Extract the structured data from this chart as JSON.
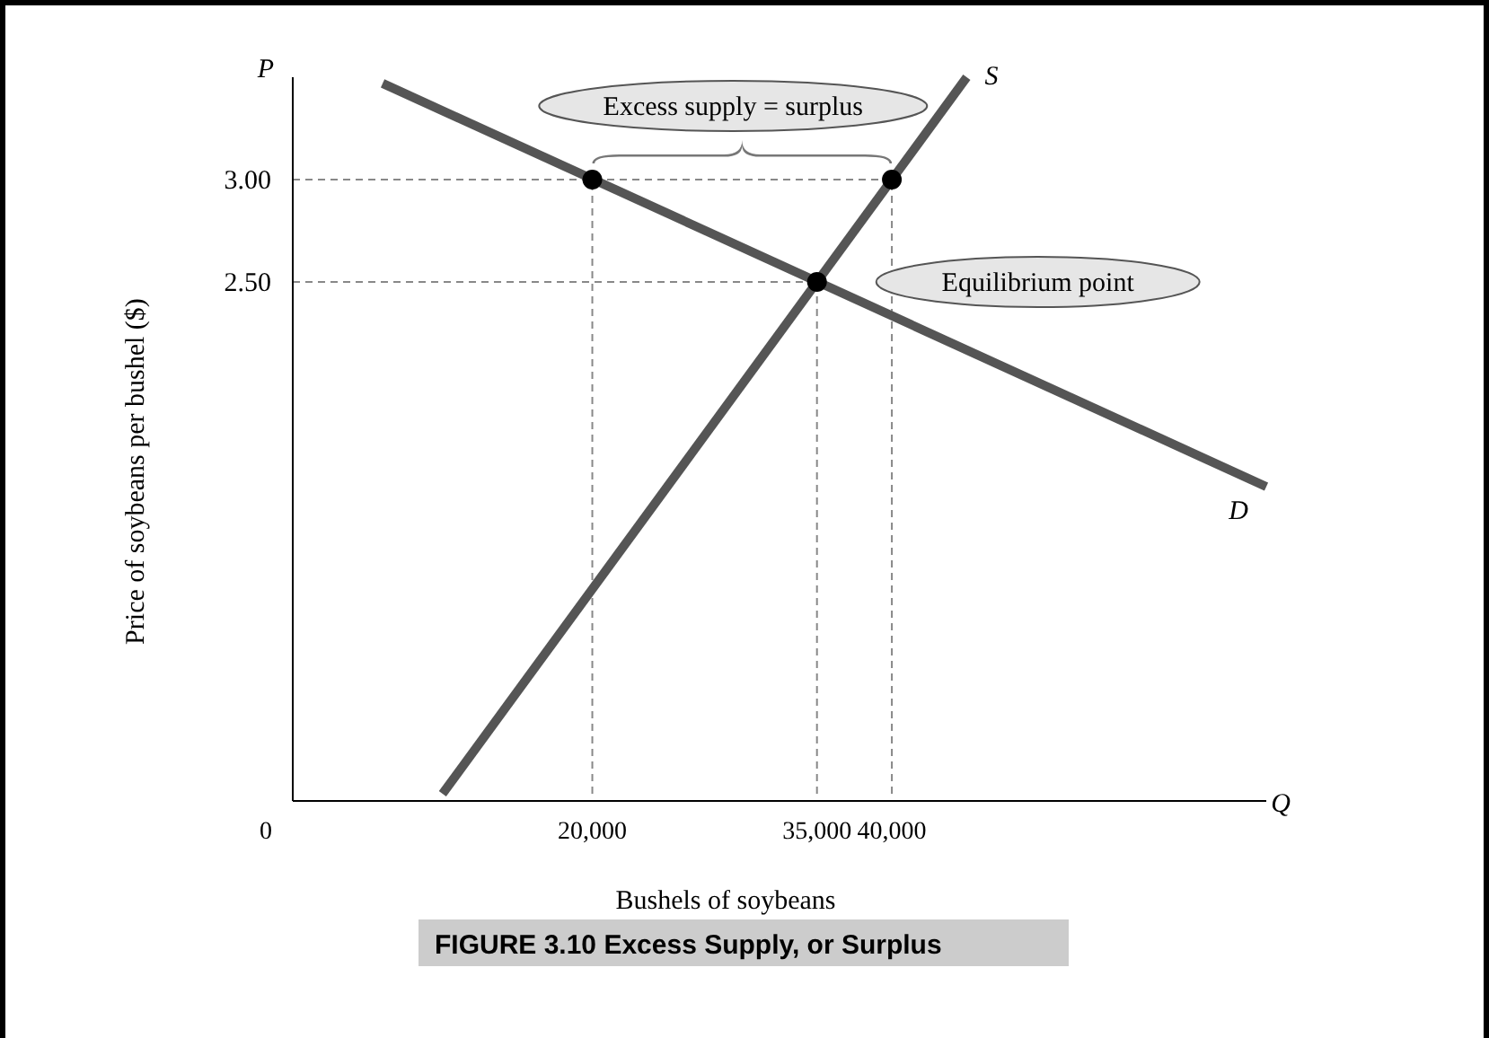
{
  "chart_data": {
    "type": "line",
    "title": "FIGURE 3.10 Excess Supply, or Surplus",
    "xlabel": "Bushels of soybeans",
    "ylabel": "Price of soybeans per bushel ($)",
    "series": [
      {
        "name": "S",
        "color": "#555555",
        "x": [
          10000,
          45000
        ],
        "values": [
          0,
          3.5
        ]
      },
      {
        "name": "D",
        "color": "#555555",
        "x": [
          6000,
          65000
        ],
        "values": [
          3.47,
          1.5
        ]
      },
      {
        "type": "scatter",
        "marker": "circle",
        "color": "#000000",
        "x": [
          20000,
          40000,
          35000
        ],
        "values": [
          3,
          3,
          2.5
        ]
      }
    ],
    "xlim": [
      0,
      65000
    ],
    "ylim": [
      0,
      3.5
    ],
    "xticks": [
      {
        "value": 0,
        "label": "0"
      },
      {
        "value": 20000,
        "label": "20,000"
      },
      {
        "value": 35000,
        "label": "35,000"
      },
      {
        "value": 40000,
        "label": "40,000"
      }
    ],
    "yticks": [
      {
        "value": 2.5,
        "label": "2.50"
      },
      {
        "value": 3,
        "label": "3.00"
      }
    ],
    "ref_lines": [
      {
        "axis": "y",
        "value": 3,
        "line_style": "dashed"
      },
      {
        "axis": "y",
        "value": 2.5,
        "line_style": "dashed"
      },
      {
        "axis": "x",
        "value": 20000,
        "line_style": "dashed"
      },
      {
        "axis": "x",
        "value": 35000,
        "line_style": "dashed"
      },
      {
        "axis": "x",
        "value": 40000,
        "line_style": "dashed"
      }
    ],
    "annotations": [
      {
        "text": "Excess supply = surplus",
        "x": 30000,
        "y": 3
      },
      "Equilibrium point",
      "P",
      "Q"
    ],
    "grid": false,
    "legend": false,
    "marker": "none",
    "line_style": "solid"
  }
}
